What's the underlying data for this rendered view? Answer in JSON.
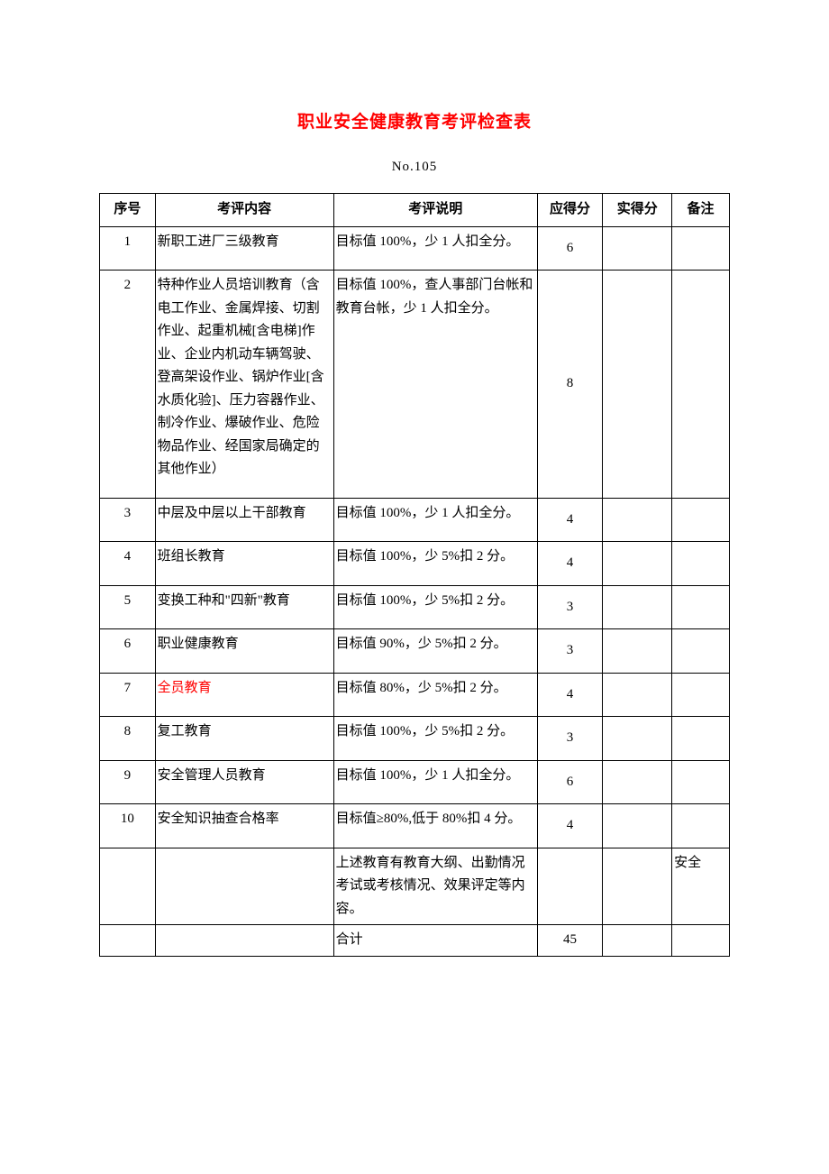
{
  "title": "职业安全健康教育考评检查表",
  "subtitle": "No.105",
  "columns": [
    "序号",
    "考评内容",
    "考评说明",
    "应得分",
    "实得分",
    "备注"
  ],
  "rows": [
    {
      "seq": "1",
      "content": "新职工进厂三级教育",
      "desc": "目标值 100%，少 1 人扣全分。",
      "score1": "6",
      "score2": "",
      "remark": "",
      "highlight": false
    },
    {
      "seq": "2",
      "content": "特种作业人员培训教育（含电工作业、金属焊接、切割作业、起重机械[含电梯]作业、企业内机动车辆驾驶、登高架设作业、锅炉作业[含水质化验]、压力容器作业、制冷作业、爆破作业、危险物品作业、经国家局确定的其他作业）",
      "desc": "目标值 100%，查人事部门台帐和教育台帐，少 1 人扣全分。",
      "score1": "8",
      "score2": "",
      "remark": "",
      "highlight": false
    },
    {
      "seq": "3",
      "content": "中层及中层以上干部教育",
      "desc": "目标值 100%，少 1 人扣全分。",
      "score1": "4",
      "score2": "",
      "remark": "",
      "highlight": false
    },
    {
      "seq": "4",
      "content": "班组长教育",
      "desc": "目标值 100%，少 5%扣 2 分。",
      "score1": "4",
      "score2": "",
      "remark": "",
      "highlight": false
    },
    {
      "seq": "5",
      "content": "变换工种和\"四新\"教育",
      "desc": "目标值 100%，少 5%扣 2 分。",
      "score1": "3",
      "score2": "",
      "remark": "",
      "highlight": false
    },
    {
      "seq": "6",
      "content": "职业健康教育",
      "desc": "目标值 90%，少 5%扣 2 分。",
      "score1": "3",
      "score2": "",
      "remark": "",
      "highlight": false
    },
    {
      "seq": "7",
      "content": "全员教育",
      "desc": "目标值 80%，少 5%扣 2 分。",
      "score1": "4",
      "score2": "",
      "remark": "",
      "highlight": true
    },
    {
      "seq": "8",
      "content": "复工教育",
      "desc": "目标值 100%，少 5%扣 2 分。",
      "score1": "3",
      "score2": "",
      "remark": "",
      "highlight": false
    },
    {
      "seq": "9",
      "content": "安全管理人员教育",
      "desc": "目标值 100%，少 1 人扣全分。",
      "score1": "6",
      "score2": "",
      "remark": "",
      "highlight": false
    },
    {
      "seq": "10",
      "content": "安全知识抽查合格率",
      "desc": "目标值≥80%,低于 80%扣 4 分。",
      "score1": "4",
      "score2": "",
      "remark": "",
      "highlight": false
    }
  ],
  "note_row": {
    "seq": "",
    "content": "",
    "desc": "上述教育有教育大纲、出勤情况考试或考核情况、效果评定等内容。",
    "score1": "",
    "score2": "",
    "remark": "安全"
  },
  "sum_row": {
    "label": "合计",
    "score1": "45",
    "score2": "",
    "remark": ""
  }
}
